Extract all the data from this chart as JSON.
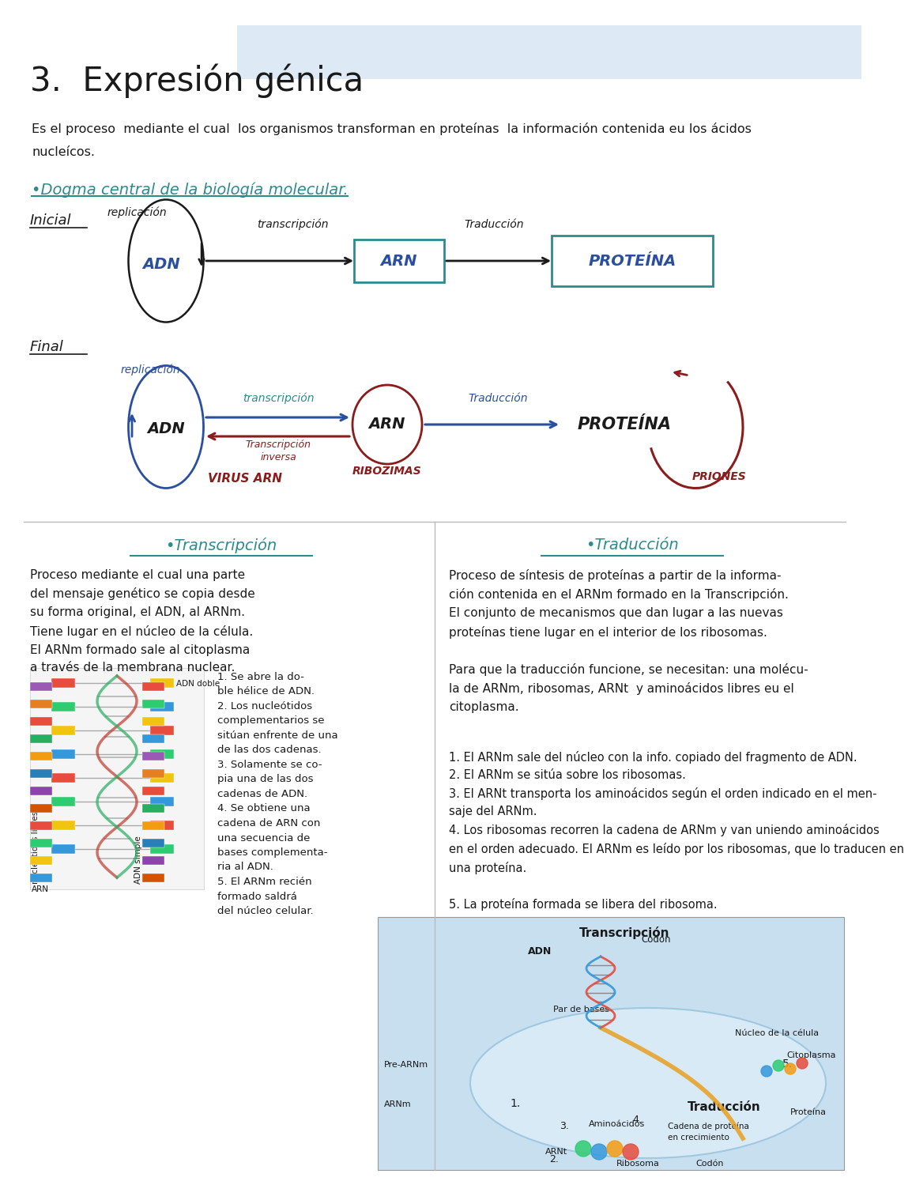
{
  "title": "3.  Expresión génica",
  "bg_color": "#ffffff",
  "header_bg": "#dde9f5",
  "intro_line1": "Es el proceso  mediante el cual  los organismos transforman en proteínas  la información contenida eu los ácidos",
  "intro_line2": "nucleícos.",
  "dogma_title": "•Dogma central de la biología molecular.",
  "inicial_label": "Inicial",
  "final_label": "Final",
  "adn_label": "ADN",
  "arn_label": "ARN",
  "proteina_label_box": "PROTEÍNA",
  "proteina_label_plain": "PROTEÍNA",
  "replicacion_label": "replicación",
  "transcripcion_label": "transcripción",
  "traduccion_label_ini": "Traducción",
  "traduccion_label_fin": "Traducción",
  "transcripcion_inv_label1": "Transcripción",
  "transcripcion_inv_label2": "inversa",
  "virus_arn_label": "VIRUS ARN",
  "ribozimas_label": "RIBOZIMAS",
  "priones_label": "PRIONES",
  "section_transcripcion": "•Transcripción",
  "section_traduccion": "•Traducción",
  "transcripcion_text": "Proceso mediante el cual una parte\ndel mensaje genético se copia desde\nsu forma original, el ADN, al ARNm.\nTiene lugar en el núcleo de la célula.\nEl ARNm formado sale al citoplasma\na través de la membrana nuclear.",
  "traduccion_text": "Proceso de síntesis de proteínas a partir de la informa-\nción contenida en el ARNm formado en la Transcripción.\nEl conjunto de mecanismos que dan lugar a las nuevas\nproteínas tiene lugar en el interior de los ribosomas.\n\nPara que la traducción funcione, se necesitan: una molécu-\nla de ARNm, ribosomas, ARNt  y aminoácidos libres eu el\ncitoplasma.",
  "step1_t": "1. Se abre la do-\nble hélice de ADN.",
  "step2_t": "2. Los nucleótidos\ncomplementarios se\nsitúan enfrente de una\nde las dos cadenas.",
  "step3_t": "3. Solamente se co-\npia una de las dos\ncadenas de ADN.",
  "step4_t": "4. Se obtiene una\ncadena de ARN con\nuna secuencia de\nbases complementa-\nria al ADN.",
  "step5_t": "5. El ARNm recién\nformado saldrá\ndel núcleo celular.",
  "trad_steps": "1. El ARNm sale del núcleo con la info. copiado del fragmento de ADN.\n2. El ARNm se sitúa sobre los ribosomas.\n3. El ARNt transporta los aminoácidos según el orden indicado en el men-\nsaje del ARNm.\n4. Los ribosomas recorren la cadena de ARNm y van uniendo aminoácidos\nen el orden adecuado. El ARNm es leído por los ribosomas, que lo traducen en\nuna proteína.\n\n5. La proteína formada se libera del ribosoma.",
  "teal": "#2a8c8c",
  "dark_red": "#8b1c1c",
  "blue": "#2a4fa0",
  "black": "#1a1a1a",
  "teal_box": "#3aacac",
  "gray_line": "#bbbbbb",
  "dna_img_bg": "#f5f5f5",
  "bio_img_bg": "#c8dff0"
}
